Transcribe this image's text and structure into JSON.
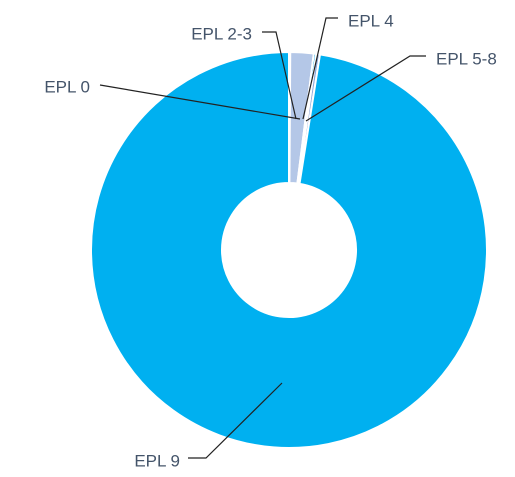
{
  "chart_data": {
    "type": "pie",
    "donut": true,
    "categories": [
      "EPL 0",
      "EPL 2-3",
      "EPL 4",
      "EPL 5-8",
      "EPL 9"
    ],
    "values": [
      0.1,
      1.9,
      0.2,
      0.3,
      97.5
    ],
    "colors": [
      "#BDD7EE",
      "#B4C7E7",
      "#00A4E4",
      "#8EA9DB",
      "#00B0F0"
    ],
    "legend": "none",
    "title": ""
  }
}
